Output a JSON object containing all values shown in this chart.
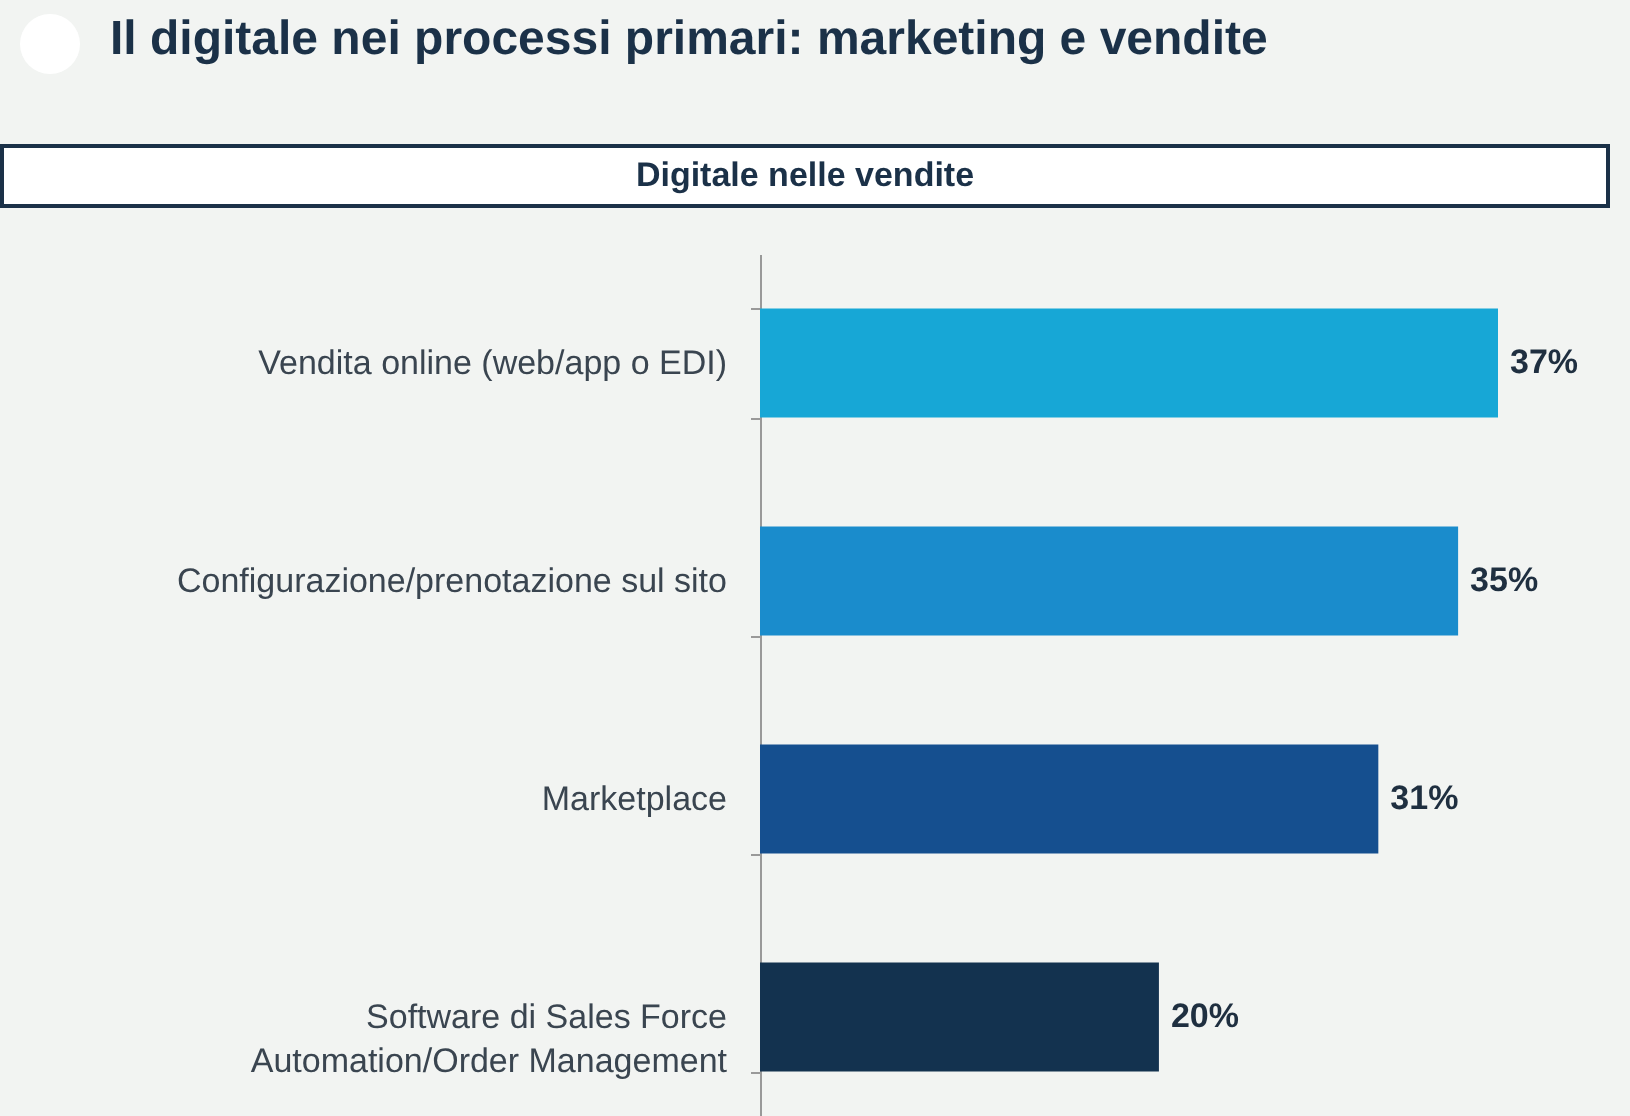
{
  "chart_data": {
    "type": "bar",
    "orientation": "horizontal",
    "title": "Il digitale nei processi primari: marketing e vendite",
    "subtitle": "Digitale nelle vendite",
    "categories": [
      "Vendita online (web/app o EDI)",
      "Configurazione/prenotazione sul sito",
      "Marketplace",
      "Software di Sales Force\nAutomation/Order Management"
    ],
    "values": [
      37,
      35,
      31,
      20
    ],
    "colors": [
      "#17a7d6",
      "#1a8ccc",
      "#154f8f",
      "#13324f"
    ],
    "value_labels": [
      "37%",
      "35%",
      "31%",
      "20%"
    ]
  }
}
